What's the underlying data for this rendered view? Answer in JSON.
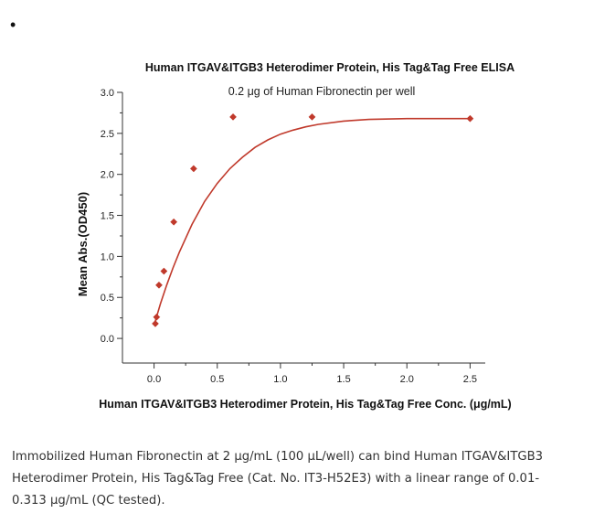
{
  "bullet": "•",
  "chart_data": {
    "type": "scatter",
    "title": "Human ITGAV&ITGB3 Heterodimer Protein, His Tag&Tag Free ELISA",
    "subtitle": "0.2 μg of Human Fibronectin per well",
    "xlabel": "Human ITGAV&ITGB3 Heterodimer Protein, His Tag&Tag Free Conc. (μg/mL)",
    "ylabel": "Mean Abs.(OD450)",
    "xlim": [
      -0.25,
      2.62
    ],
    "ylim": [
      -0.3,
      3.0
    ],
    "x_ticks": [
      "0.0",
      "0.5",
      "1.0",
      "1.5",
      "2.0",
      "2.5"
    ],
    "y_ticks": [
      "0.0",
      "0.5",
      "1.0",
      "1.5",
      "2.0",
      "2.5",
      "3.0"
    ],
    "grid": false,
    "series": [
      {
        "marker_color": "#c0392b",
        "line_color": "#c0392b",
        "x": [
          0.01,
          0.02,
          0.039,
          0.078,
          0.156,
          0.313,
          0.625,
          1.25,
          2.5
        ],
        "y": [
          0.18,
          0.26,
          0.65,
          0.82,
          1.42,
          2.07,
          2.7,
          2.7,
          2.68
        ]
      }
    ],
    "fit_curve": {
      "color": "#c0392b",
      "model": "one-site saturation",
      "x": [
        0.0,
        0.05,
        0.1,
        0.15,
        0.2,
        0.3,
        0.4,
        0.5,
        0.6,
        0.7,
        0.8,
        0.9,
        1.0,
        1.1,
        1.2,
        1.3,
        1.5,
        1.7,
        2.0,
        2.2,
        2.5
      ],
      "y": [
        0.16,
        0.42,
        0.65,
        0.86,
        1.05,
        1.39,
        1.67,
        1.89,
        2.07,
        2.21,
        2.33,
        2.42,
        2.49,
        2.54,
        2.58,
        2.61,
        2.65,
        2.67,
        2.68,
        2.68,
        2.68
      ]
    }
  },
  "caption": {
    "line1": "Immobilized Human Fibronectin at 2 μg/mL (100 μL/well) can bind Human ITGAV&ITGB3",
    "line2": "Heterodimer Protein, His Tag&Tag Free (Cat. No. IT3-H52E3) with a linear range of 0.01-",
    "line3": "0.313 μg/mL (QC tested)."
  }
}
